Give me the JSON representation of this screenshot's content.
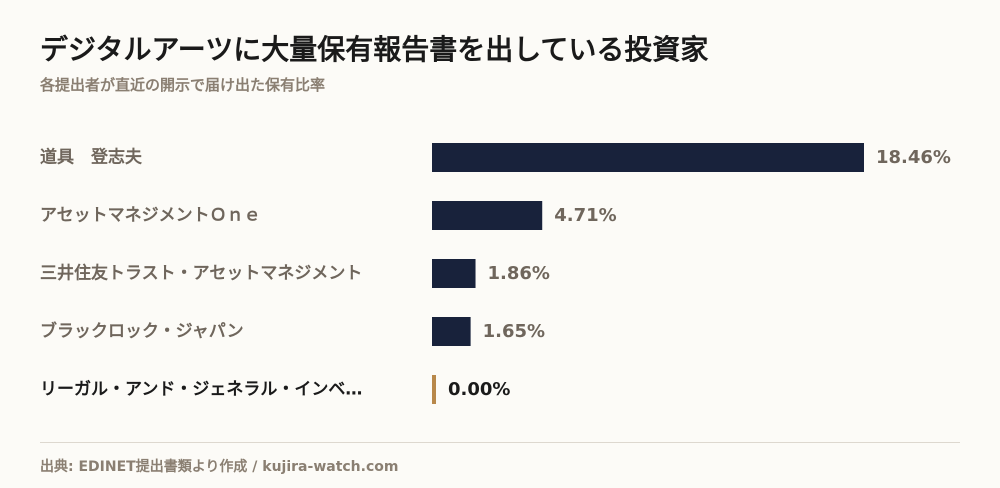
{
  "title": "デジタルアーツに大量保有報告書を出している投資家",
  "subtitle": "各提出者が直近の開示で届け出た保有比率",
  "source": "出典: EDINET提出書類より作成 / kujira-watch.com",
  "colors": {
    "bar": "#18223b",
    "highlight_bar": "#b8884a",
    "label": "#6f665c",
    "highlight_label": "#1a1a1a"
  },
  "chart_data": {
    "type": "bar",
    "orientation": "horizontal",
    "categories": [
      "道具　登志夫",
      "アセットマネジメントＯｎｅ",
      "三井住友トラスト・アセットマネジメント",
      "ブラックロック・ジャパン",
      "リーガル・アンド・ジェネラル・インベ…"
    ],
    "values": [
      18.46,
      4.71,
      1.86,
      1.65,
      0.0
    ],
    "value_labels": [
      "18.46%",
      "4.71%",
      "1.86%",
      "1.65%",
      "0.00%"
    ],
    "highlight_index": 4,
    "unit": "%",
    "xlim": [
      0,
      18.46
    ]
  }
}
